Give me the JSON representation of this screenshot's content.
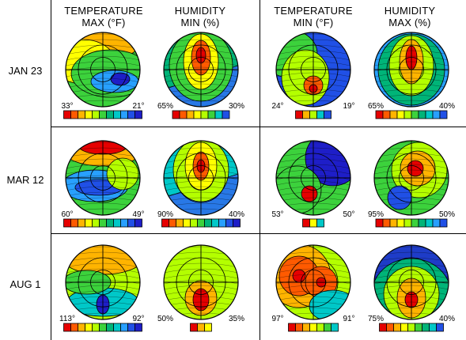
{
  "columns": [
    {
      "line1": "TEMPERATURE",
      "line2": "MAX (°F)"
    },
    {
      "line1": "HUMIDITY",
      "line2": "MIN (%)"
    },
    {
      "line1": "TEMPERATURE",
      "line2": "MIN (°F)"
    },
    {
      "line1": "HUMIDITY",
      "line2": "MAX (%)"
    }
  ],
  "rows": [
    "JAN 23",
    "MAR 12",
    "AUG 1"
  ],
  "panels": [
    [
      {
        "min_label": "33°",
        "max_label": "21°",
        "steps": 11,
        "colors": [
          "#e60000",
          "#ff5a00",
          "#ffb400",
          "#ffff00",
          "#b4ff00",
          "#3cd23c",
          "#00b478",
          "#00c8c8",
          "#28a0ff",
          "#2050e6",
          "#1e1ec8"
        ]
      },
      {
        "min_label": "65%",
        "max_label": "30%",
        "steps": 8,
        "colors": [
          "#e60000",
          "#ff5a00",
          "#ffb400",
          "#ffff00",
          "#b4ff00",
          "#3cd23c",
          "#00c8c8",
          "#2050e6"
        ]
      },
      {
        "min_label": "24°",
        "max_label": "19°",
        "steps": 5,
        "colors": [
          "#e60000",
          "#ffb400",
          "#b4ff00",
          "#00c8c8",
          "#2050e6"
        ]
      },
      {
        "min_label": "65%",
        "max_label": "40%",
        "steps": 10,
        "colors": [
          "#e60000",
          "#ff5a00",
          "#ffb400",
          "#ffff00",
          "#b4ff00",
          "#3cd23c",
          "#00b478",
          "#00c8c8",
          "#28a0ff",
          "#2050e6"
        ]
      }
    ],
    [
      {
        "min_label": "60°",
        "max_label": "49°",
        "steps": 11,
        "colors": [
          "#e60000",
          "#ff5a00",
          "#ffb400",
          "#ffff00",
          "#b4ff00",
          "#3cd23c",
          "#00b478",
          "#00c8c8",
          "#28a0ff",
          "#2050e6",
          "#1e1ec8"
        ]
      },
      {
        "min_label": "90%",
        "max_label": "40%",
        "steps": 11,
        "colors": [
          "#e60000",
          "#ff5a00",
          "#ffb400",
          "#ffff00",
          "#b4ff00",
          "#3cd23c",
          "#00b478",
          "#00c8c8",
          "#28a0ff",
          "#2050e6",
          "#1e1ec8"
        ]
      },
      {
        "min_label": "53°",
        "max_label": "50°",
        "steps": 3,
        "colors": [
          "#e60000",
          "#ffff00",
          "#00c8c8"
        ]
      },
      {
        "min_label": "95%",
        "max_label": "50%",
        "steps": 10,
        "colors": [
          "#e60000",
          "#ff5a00",
          "#ffb400",
          "#ffff00",
          "#b4ff00",
          "#3cd23c",
          "#00b478",
          "#00c8c8",
          "#28a0ff",
          "#2050e6"
        ]
      }
    ],
    [
      {
        "min_label": "113°",
        "max_label": "92°",
        "steps": 11,
        "colors": [
          "#e60000",
          "#ff5a00",
          "#ffb400",
          "#ffff00",
          "#b4ff00",
          "#3cd23c",
          "#00b478",
          "#00c8c8",
          "#28a0ff",
          "#2050e6",
          "#1e1ec8"
        ]
      },
      {
        "min_label": "50%",
        "max_label": "35%",
        "steps": 3,
        "colors": [
          "#e60000",
          "#ffb400",
          "#ffff00"
        ]
      },
      {
        "min_label": "97°",
        "max_label": "91°",
        "steps": 7,
        "colors": [
          "#e60000",
          "#ff5a00",
          "#ffb400",
          "#ffff00",
          "#b4ff00",
          "#3cd23c",
          "#00c8c8"
        ]
      },
      {
        "min_label": "75%",
        "max_label": "40%",
        "steps": 9,
        "colors": [
          "#e60000",
          "#ff5a00",
          "#ffb400",
          "#ffff00",
          "#b4ff00",
          "#3cd23c",
          "#00b478",
          "#00c8c8",
          "#2050e6"
        ]
      }
    ]
  ]
}
